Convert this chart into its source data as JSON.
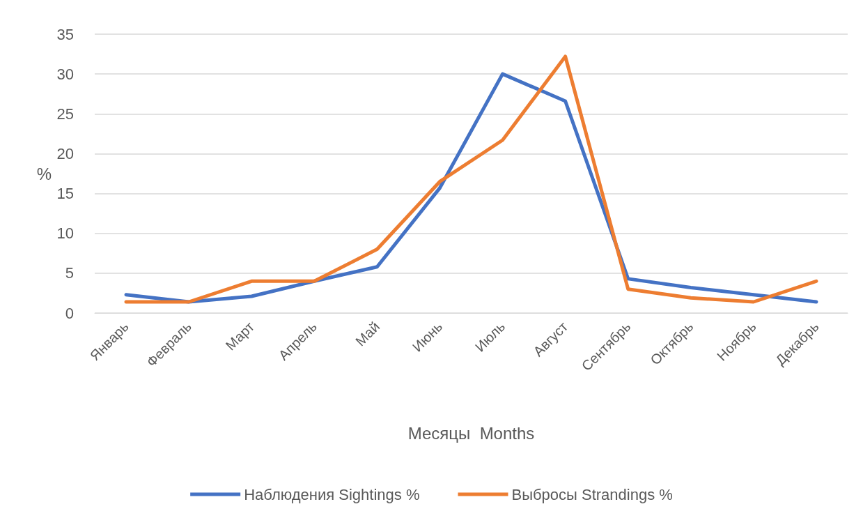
{
  "chart_data": {
    "type": "line",
    "ylabel": "%",
    "xlabel": "Месяцы  Months",
    "categories": [
      "Январь",
      "Февраль",
      "Март",
      "Апрель",
      "Май",
      "Июнь",
      "Июль",
      "Август",
      "Сентябрь",
      "Октябрь",
      "Ноябрь",
      "Декабрь"
    ],
    "series": [
      {
        "name": "Наблюдения Sightings %",
        "color": "#4472c4",
        "values": [
          2.3,
          1.4,
          2.1,
          4.0,
          5.8,
          15.7,
          30.0,
          26.6,
          4.3,
          3.2,
          2.3,
          1.4
        ]
      },
      {
        "name": "Выбросы Strandings %",
        "color": "#ed7d31",
        "values": [
          1.4,
          1.4,
          4.0,
          4.0,
          8.0,
          16.5,
          21.7,
          32.2,
          3.0,
          1.9,
          1.4,
          4.0
        ]
      }
    ],
    "ylim": [
      0,
      35
    ],
    "yticks": [
      0,
      5,
      10,
      15,
      20,
      25,
      30,
      35
    ],
    "grid": "y",
    "legend": "bottom",
    "marker": "none",
    "line_style": "solid"
  }
}
